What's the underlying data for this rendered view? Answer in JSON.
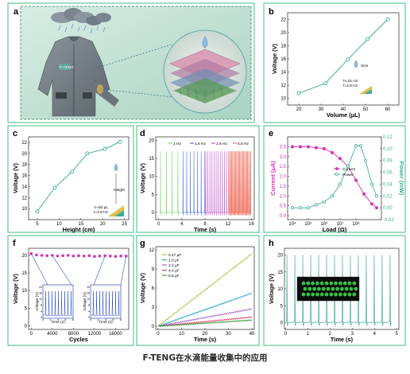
{
  "caption": "F-TENG在水滴能量收集中的应用",
  "panels": {
    "a": {
      "letter": "a",
      "logo_text": "F-TENG"
    },
    "b": {
      "letter": "b",
      "legend": "Size",
      "note1": "h=15 cm",
      "note2": "f=2.8 Hz"
    },
    "c": {
      "letter": "c",
      "legend": "Height",
      "note1": "V=50 μL",
      "note2": "f=2.8 Hz"
    },
    "d": {
      "letter": "d"
    },
    "e": {
      "letter": "e"
    },
    "f": {
      "letter": "f"
    },
    "g": {
      "letter": "g"
    },
    "h": {
      "letter": "h"
    }
  },
  "colors": {
    "teal": "#3fae9a",
    "magenta": "#d631b5",
    "frame": "#3fbf7f",
    "dashed": "#2e7d6b"
  },
  "chart_data": [
    {
      "id": "b",
      "type": "line",
      "xlabel": "Volume (μL)",
      "ylabel": "Voltage (V)",
      "xlim": [
        15,
        65
      ],
      "ylim": [
        9,
        23
      ],
      "xticks": [
        20,
        30,
        40,
        50,
        60
      ],
      "yticks": [
        10,
        12,
        14,
        16,
        18,
        20,
        22
      ],
      "x": [
        20,
        32,
        42,
        51,
        60
      ],
      "series": [
        {
          "values": [
            10.8,
            12.3,
            15.9,
            19.0,
            22.0
          ]
        }
      ]
    },
    {
      "id": "c",
      "type": "line",
      "xlabel": "Height (cm)",
      "ylabel": "Voltage (V)",
      "xlim": [
        3,
        26
      ],
      "ylim": [
        8,
        23
      ],
      "xticks": [
        5,
        10,
        15,
        20,
        25
      ],
      "yticks": [
        10,
        12,
        14,
        16,
        18,
        20,
        22
      ],
      "x": [
        5,
        9,
        13,
        16.5,
        20.5,
        24
      ],
      "series": [
        {
          "values": [
            9.5,
            13.8,
            16.7,
            20.0,
            20.8,
            22.1
          ]
        }
      ]
    },
    {
      "id": "d",
      "type": "line",
      "xlabel": "Time (s)",
      "ylabel": "Voltage (V)",
      "xlim": [
        -0.5,
        16.5
      ],
      "ylim": [
        -2,
        21
      ],
      "xticks": [
        0,
        4,
        8,
        12,
        16
      ],
      "yticks": [
        0,
        5,
        10,
        15,
        20
      ],
      "series": [
        {
          "name": "1 Hz",
          "color": "#7bd36f",
          "t_start": 0,
          "t_end": 4,
          "freq": 1.0
        },
        {
          "name": "1.6 Hz",
          "color": "#4f74e0",
          "t_start": 4,
          "t_end": 8,
          "freq": 1.6
        },
        {
          "name": "2.8 Hz",
          "color": "#c85cd6",
          "t_start": 8,
          "t_end": 12,
          "freq": 2.8
        },
        {
          "name": "5.8 Hz",
          "color": "#f07060",
          "t_start": 12,
          "t_end": 16,
          "freq": 5.8
        }
      ],
      "peak_level": 17
    },
    {
      "id": "e",
      "type": "line",
      "xlabel": "Load (Ω)",
      "ylabel": "Current (μA)",
      "ylabel_right": "Power (mW)",
      "xscale": "log",
      "xlim_exp": [
        3.7,
        9.6
      ],
      "ylim": [
        -0.2,
        4.0
      ],
      "ylim_right": [
        -0.02,
        0.12
      ],
      "xticks": [
        "10⁴",
        "10⁵",
        "10⁶",
        "10⁷",
        "10⁸"
      ],
      "yticks": [
        0.0,
        0.5,
        1.0,
        1.5,
        2.0,
        2.5,
        3.0,
        3.5
      ],
      "yticks_right": [
        -0.02,
        0.0,
        0.02,
        0.04,
        0.06,
        0.08,
        0.1,
        0.12
      ],
      "series": [
        {
          "name": "Current",
          "color": "#d631b5",
          "x_exp": [
            4,
            4.5,
            5,
            5.5,
            6,
            6.5,
            7,
            7.5,
            8,
            8.5,
            9,
            9.3
          ],
          "values": [
            3.5,
            3.5,
            3.5,
            3.45,
            3.4,
            3.2,
            2.9,
            2.5,
            1.8,
            1.1,
            0.6,
            0.4
          ]
        },
        {
          "name": "Power",
          "color": "#3fae9a",
          "x_exp": [
            4,
            4.5,
            5,
            5.5,
            6,
            6.5,
            7,
            7.5,
            8,
            8.3,
            8.6,
            9,
            9.3
          ],
          "values": [
            0.0,
            0.0,
            0.0,
            0.005,
            0.01,
            0.02,
            0.04,
            0.07,
            0.105,
            0.105,
            0.08,
            0.04,
            0.02
          ]
        }
      ]
    },
    {
      "id": "f",
      "type": "scatter",
      "xlabel": "Cycles",
      "ylabel": "Voltage (V)",
      "xlim": [
        -500,
        18500
      ],
      "ylim": [
        -1,
        22
      ],
      "xticks": [
        0,
        4000,
        8000,
        12000,
        16000
      ],
      "yticks": [
        0,
        5,
        10,
        15,
        20
      ],
      "x": [
        0,
        1000,
        2000,
        3000,
        4000,
        5000,
        6000,
        7000,
        8000,
        9000,
        10000,
        11000,
        12000,
        13000,
        14000,
        15000,
        16000,
        17000,
        18000
      ],
      "series": [
        {
          "values": [
            20.5,
            20.1,
            20.0,
            19.9,
            20.0,
            19.8,
            19.9,
            20.0,
            19.8,
            19.9,
            19.8,
            19.9,
            19.7,
            19.8,
            19.9,
            19.8,
            19.7,
            19.8,
            19.8
          ]
        }
      ],
      "inset_ylabel": "Voltage (V)",
      "inset_xlabel": "Time (s)",
      "inset_xticks": [
        0,
        2,
        4,
        6,
        8
      ],
      "inset_yticks": [
        0,
        4,
        8,
        12,
        16,
        20
      ]
    },
    {
      "id": "g",
      "type": "line",
      "xlabel": "Time (s)",
      "ylabel": "Voltage (V)",
      "xlim": [
        -1,
        41
      ],
      "ylim": [
        -0.5,
        12.5
      ],
      "xticks": [
        0,
        10,
        20,
        30,
        40
      ],
      "yticks": [
        0,
        3,
        6,
        9,
        12
      ],
      "series": [
        {
          "name": "0.47 μF",
          "color": "#a6c93a",
          "slope": 0.285
        },
        {
          "name": "1.0 μF",
          "color": "#2aa7c9",
          "slope": 0.13
        },
        {
          "name": "2.2 μF",
          "color": "#9b62c9",
          "slope": 0.068
        },
        {
          "name": "4.4 μF",
          "color": "#e0456a",
          "slope": 0.036
        },
        {
          "name": "6.6 μF",
          "color": "#3a9a3a",
          "slope": 0.024
        }
      ]
    },
    {
      "id": "h",
      "type": "line",
      "xlabel": "Time (s)",
      "ylabel": "Voltage (V)",
      "xlim": [
        -0.05,
        5.1
      ],
      "ylim": [
        -2,
        22
      ],
      "xticks": [
        0,
        1,
        2,
        3,
        4,
        5
      ],
      "yticks": [
        0,
        5,
        10,
        15,
        20
      ],
      "color": "#3fae9a",
      "freq": 2.8,
      "peak_level": 20
    }
  ]
}
